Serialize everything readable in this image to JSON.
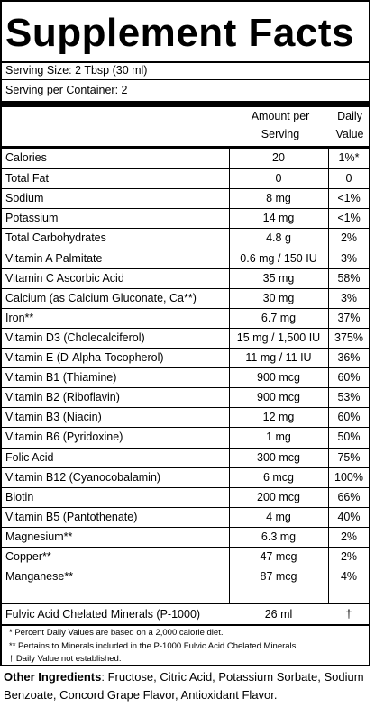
{
  "title": "Supplement Facts",
  "serving_size": "Serving Size: 2 Tbsp  (30 ml)",
  "servings_per_container": "Serving per Container: 2",
  "header": {
    "amount": "Amount per\nServing",
    "dv": "Daily\nValue"
  },
  "rows": [
    {
      "name": "Calories",
      "amount": "20",
      "dv": "1%*"
    },
    {
      "name": "Total Fat",
      "amount": "0",
      "dv": "0"
    },
    {
      "name": "Sodium",
      "amount": "8 mg",
      "dv": "<1%"
    },
    {
      "name": "Potassium",
      "amount": "14 mg",
      "dv": "<1%"
    },
    {
      "name": "Total Carbohydrates",
      "amount": "4.8 g",
      "dv": "2%"
    },
    {
      "name": "Vitamin A Palmitate",
      "amount": "0.6 mg / 150 IU",
      "dv": "3%"
    },
    {
      "name": "Vitamin C Ascorbic Acid",
      "amount": "35 mg",
      "dv": "58%"
    },
    {
      "name": "Calcium (as Calcium Gluconate, Ca**)",
      "amount": "30 mg",
      "dv": "3%"
    },
    {
      "name": "Iron**",
      "amount": "6.7 mg",
      "dv": "37%"
    },
    {
      "name": "Vitamin D3 (Cholecalciferol)",
      "amount": "15 mg / 1,500 IU",
      "dv": "375%"
    },
    {
      "name": "Vitamin E (D-Alpha-Tocopherol)",
      "amount": "11 mg / 11 IU",
      "dv": "36%"
    },
    {
      "name": "Vitamin B1 (Thiamine)",
      "amount": "900 mcg",
      "dv": "60%"
    },
    {
      "name": "Vitamin B2 (Riboflavin)",
      "amount": "900 mcg",
      "dv": "53%"
    },
    {
      "name": "Vitamin B3 (Niacin)",
      "amount": "12 mg",
      "dv": "60%"
    },
    {
      "name": "Vitamin B6 (Pyridoxine)",
      "amount": "1 mg",
      "dv": "50%"
    },
    {
      "name": "Folic Acid",
      "amount": "300 mcg",
      "dv": "75%"
    },
    {
      "name": "Vitamin B12 (Cyanocobalamin)",
      "amount": "6 mcg",
      "dv": "100%"
    },
    {
      "name": "Biotin",
      "amount": "200 mcg",
      "dv": "66%"
    },
    {
      "name": "Vitamin B5 (Pantothenate)",
      "amount": "4 mg",
      "dv": "40%"
    },
    {
      "name": "Magnesium**",
      "amount": "6.3 mg",
      "dv": "2%"
    },
    {
      "name": "Copper**",
      "amount": "47 mcg",
      "dv": "2%"
    },
    {
      "name": "Manganese**",
      "amount": "87 mcg",
      "dv": "4%"
    }
  ],
  "fulvic": {
    "name": "Fulvic Acid Chelated Minerals (P-1000)",
    "amount": "26 ml",
    "dv": "†"
  },
  "footnotes": [
    "* Percent Daily Values are based on a 2,000 calorie diet.",
    "** Pertains to Minerals included in the P-1000 Fulvic Acid Chelated Minerals.",
    "† Daily Value not established."
  ],
  "other_ingredients": {
    "label": "Other Ingredients",
    "text": ": Fructose, Citric Acid, Potassium Sorbate, Sodium Benzoate, Concord Grape Flavor, Antioxidant Flavor."
  }
}
